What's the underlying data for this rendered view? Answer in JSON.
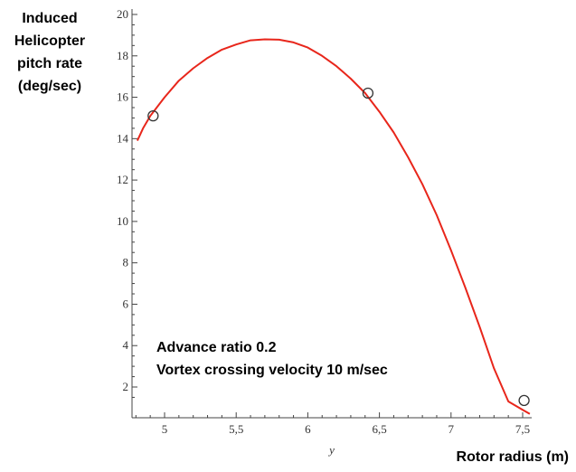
{
  "chart_data": {
    "type": "line",
    "ylabel_lines": [
      "Induced",
      "Helicopter",
      "pitch rate",
      "(deg/sec)"
    ],
    "xlabel": "Rotor radius (m)",
    "x_variable": "y",
    "annotations": [
      "Advance ratio 0.2",
      "Vortex crossing velocity 10 m/sec"
    ],
    "xlim": [
      4.8,
      7.6
    ],
    "ylim": [
      1,
      20
    ],
    "x_ticks": [
      5,
      5.5,
      6,
      6.5,
      7,
      7.5
    ],
    "x_tick_labels": [
      "5",
      "5,5",
      "6",
      "6,5",
      "7",
      "7,5"
    ],
    "y_ticks": [
      2,
      4,
      6,
      8,
      10,
      12,
      14,
      16,
      18,
      20
    ],
    "y_tick_labels": [
      "2",
      "4",
      "6",
      "8",
      "10",
      "12",
      "14",
      "16",
      "18",
      "20"
    ],
    "curve_color": "#e8261b",
    "series": [
      {
        "x": [
          4.81,
          4.85,
          4.9,
          5.0,
          5.1,
          5.2,
          5.3,
          5.4,
          5.5,
          5.6,
          5.7,
          5.8,
          5.9,
          6.0,
          6.1,
          6.2,
          6.3,
          6.4,
          6.5,
          6.6,
          6.7,
          6.8,
          6.9,
          7.0,
          7.1,
          7.2,
          7.3,
          7.4,
          7.5,
          7.55
        ],
        "y": [
          13.9,
          14.5,
          15.1,
          16.0,
          16.8,
          17.4,
          17.9,
          18.3,
          18.55,
          18.75,
          18.8,
          18.78,
          18.65,
          18.4,
          18.0,
          17.5,
          16.9,
          16.2,
          15.3,
          14.3,
          13.1,
          11.8,
          10.3,
          8.6,
          6.8,
          4.9,
          2.9,
          1.3,
          0.9,
          0.7
        ]
      }
    ],
    "markers": [
      {
        "x": 4.92,
        "y": 15.1
      },
      {
        "x": 6.42,
        "y": 16.2
      },
      {
        "x": 7.51,
        "y": 1.35
      }
    ]
  }
}
